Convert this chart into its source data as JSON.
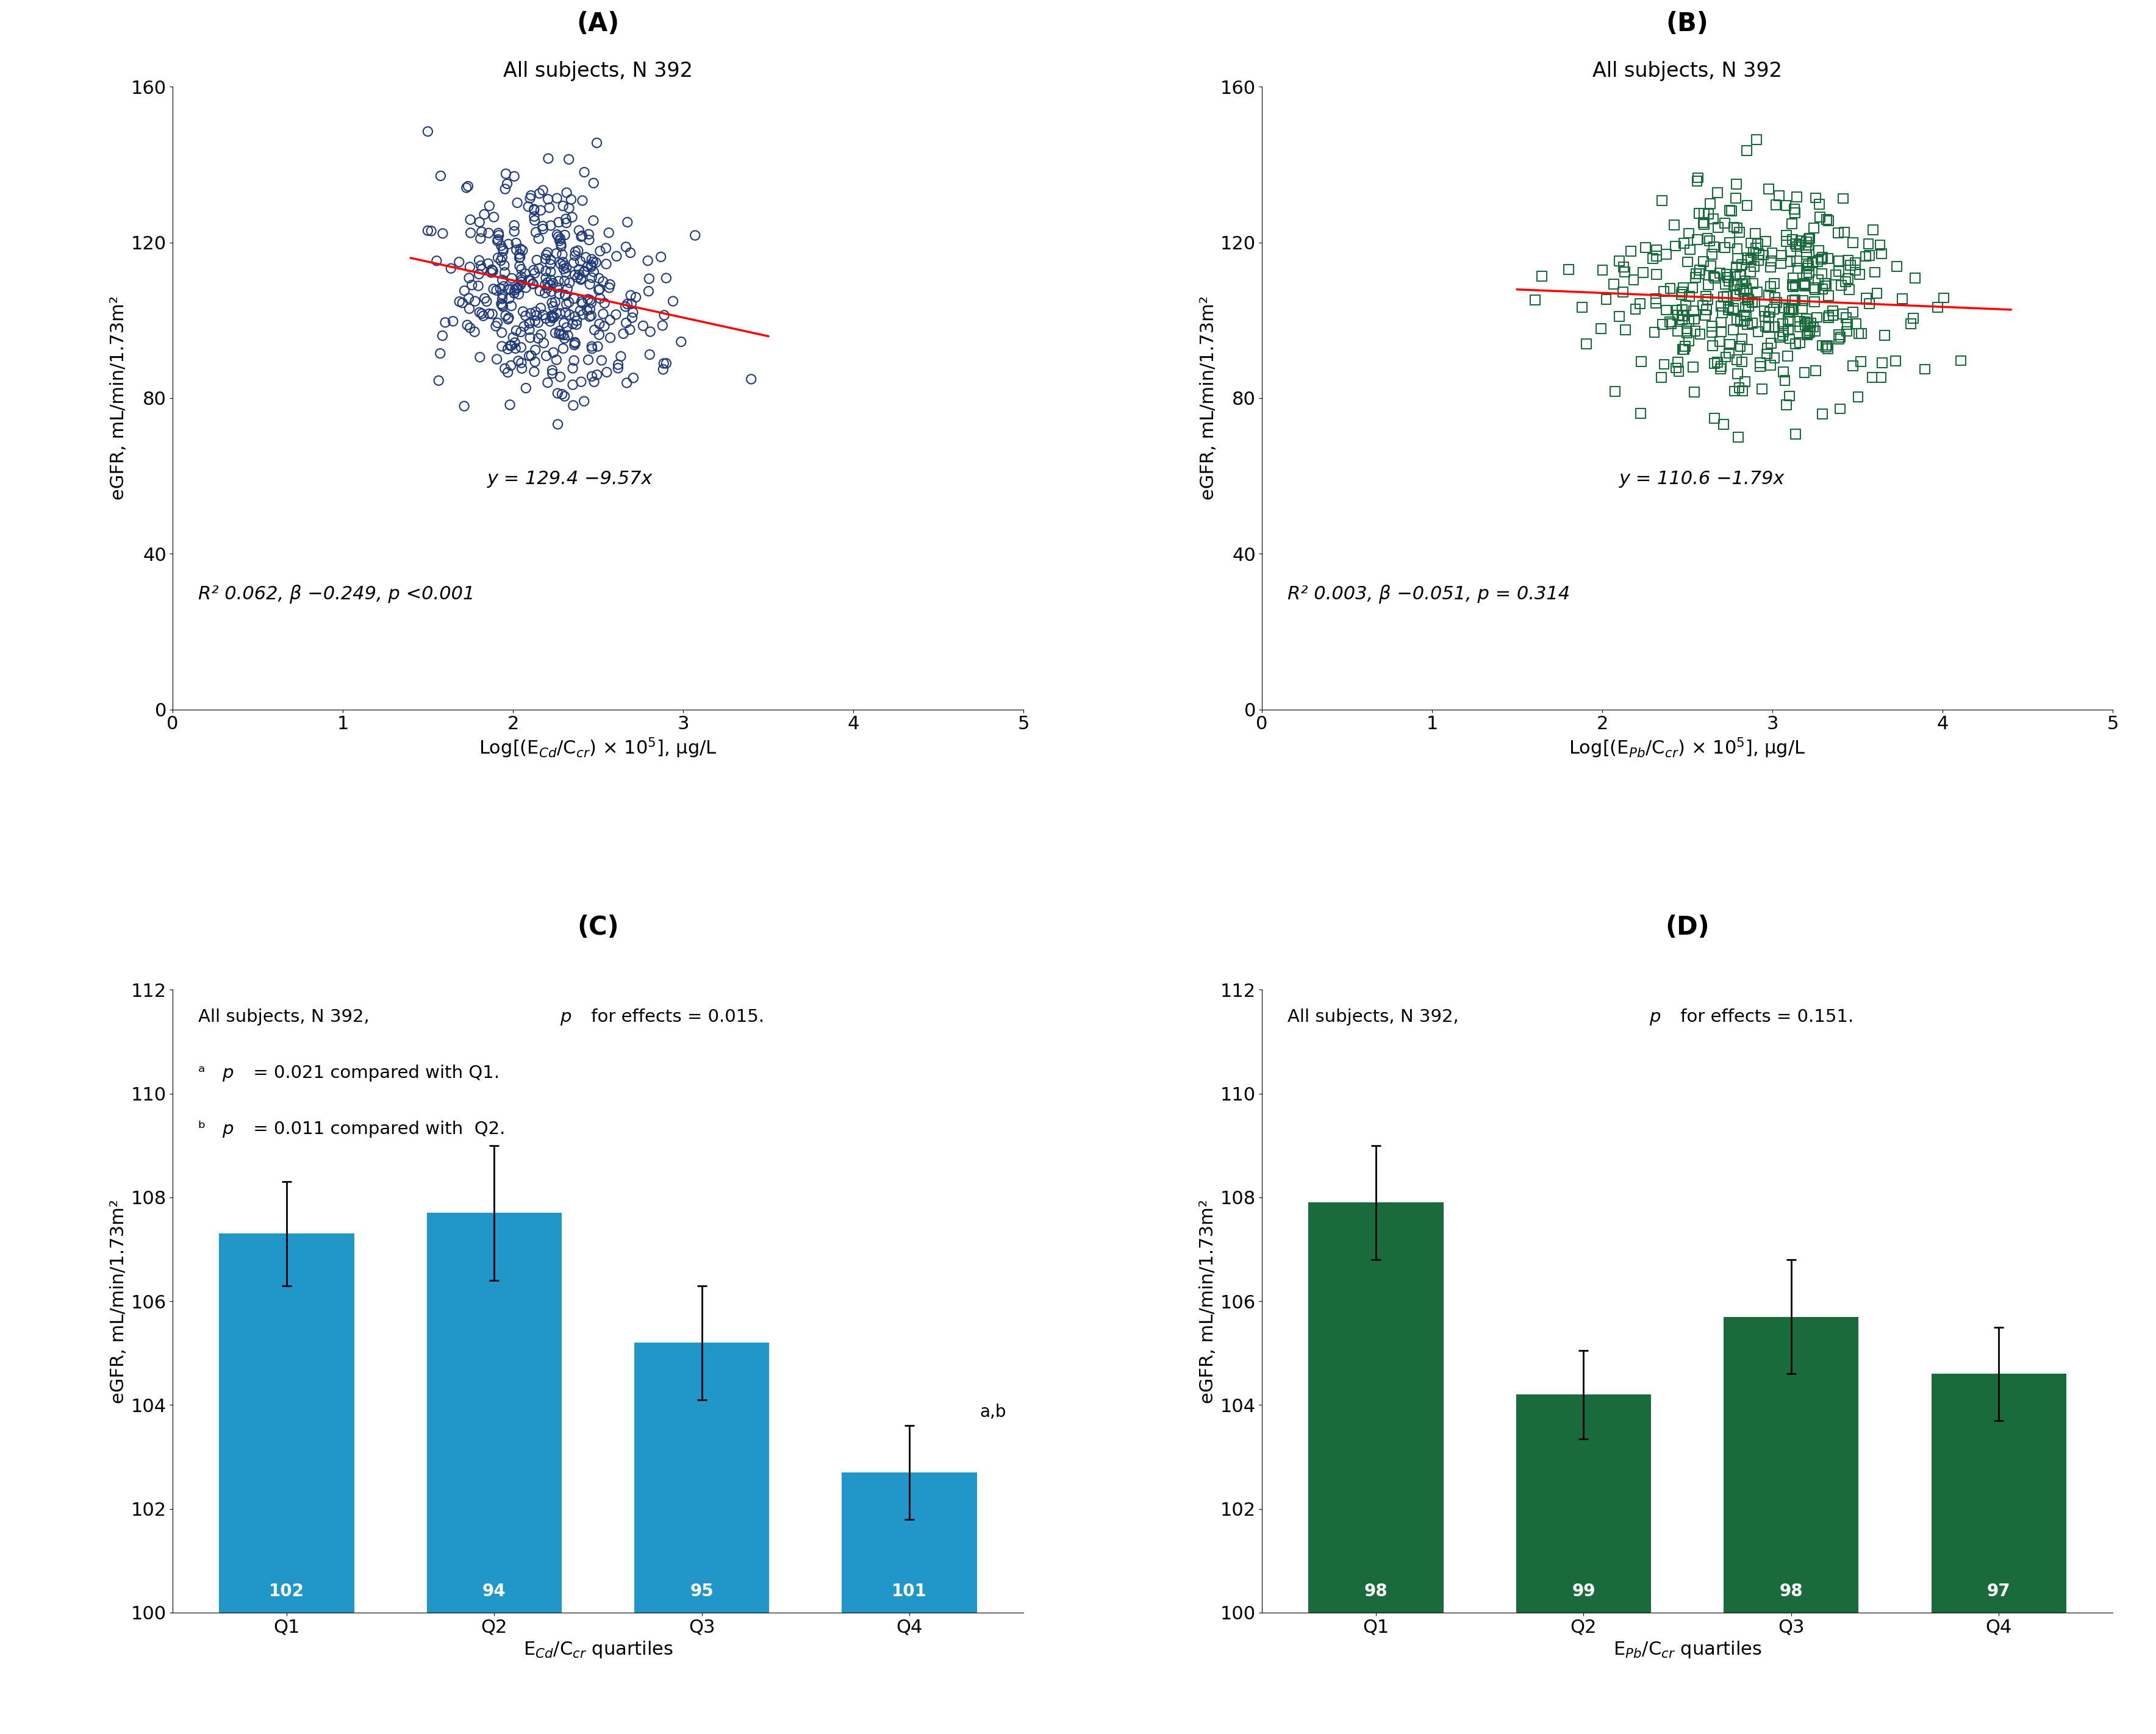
{
  "panel_A": {
    "title": "All subjects, N 392",
    "xlabel": "Log[(E$_{Cd}$/C$_{cr}$) × 10$^5$], μg/L",
    "ylabel": "eGFR, mL/min/1.73m²",
    "scatter_color": "#1F3A7A",
    "marker": "o",
    "xlim": [
      0,
      5
    ],
    "ylim": [
      0,
      160
    ],
    "xticks": [
      0,
      1,
      2,
      3,
      4,
      5
    ],
    "yticks": [
      0,
      40,
      80,
      120,
      160
    ],
    "intercept": 129.4,
    "slope": -9.57,
    "equation": "y = 129.4 −9.57x",
    "stats": "R² 0.062, β −0.249, p <0.001",
    "line_color": "#FF0000",
    "x_mean": 2.2,
    "x_std": 0.32,
    "x_min": 1.5,
    "x_max": 3.4,
    "y_noise": 13,
    "n_points": 392,
    "seed": 42,
    "line_xmin": 1.4,
    "line_xmax": 3.5
  },
  "panel_B": {
    "title": "All subjects, N 392",
    "xlabel": "Log[(E$_{Pb}$/C$_{cr}$) × 10$^5$], μg/L",
    "ylabel": "eGFR, mL/min/1.73m²",
    "scatter_color": "#1A6B3C",
    "marker": "s",
    "xlim": [
      0,
      5
    ],
    "ylim": [
      0,
      160
    ],
    "xticks": [
      0,
      1,
      2,
      3,
      4,
      5
    ],
    "yticks": [
      0,
      40,
      80,
      120,
      160
    ],
    "intercept": 110.6,
    "slope": -1.79,
    "equation": "y = 110.6 −1.79x",
    "stats": "R² 0.003, β −0.051, p = 0.314",
    "line_color": "#FF0000",
    "x_mean": 2.9,
    "x_std": 0.42,
    "x_min": 1.6,
    "x_max": 4.3,
    "y_noise": 13,
    "n_points": 392,
    "seed": 99,
    "line_xmin": 1.5,
    "line_xmax": 4.4
  },
  "panel_C": {
    "xlabel": "E$_{Cd}$/C$_{cr}$ quartiles",
    "ylabel": "eGFR, mL/min/1.73m²",
    "categories": [
      "Q1",
      "Q2",
      "Q3",
      "Q4"
    ],
    "values": [
      107.3,
      107.7,
      105.2,
      102.7
    ],
    "errors": [
      1.0,
      1.3,
      1.1,
      0.9
    ],
    "ns": [
      102,
      94,
      95,
      101
    ],
    "bar_color": "#2196C8",
    "ylim": [
      100,
      112
    ],
    "yticks": [
      100,
      102,
      104,
      106,
      108,
      110,
      112
    ],
    "annotation": "a,b",
    "annot_bar": 3,
    "line1": "All subjects, N 392, ",
    "line1_p": "p",
    "line1_rest": " for effects = 0.015.",
    "line2_super": "a",
    "line2_p": "p",
    "line2_rest": " = 0.021 compared with Q1.",
    "line3_super": "b",
    "line3_p": "p",
    "line3_rest": " = 0.011 compared with  Q2."
  },
  "panel_D": {
    "xlabel": "E$_{Pb}$/C$_{cr}$ quartiles",
    "ylabel": "eGFR, mL/min/1.73m²",
    "categories": [
      "Q1",
      "Q2",
      "Q3",
      "Q4"
    ],
    "values": [
      107.9,
      104.2,
      105.7,
      104.6
    ],
    "errors": [
      1.1,
      0.85,
      1.1,
      0.9
    ],
    "ns": [
      98,
      99,
      98,
      97
    ],
    "bar_color": "#1A6B3C",
    "ylim": [
      100,
      112
    ],
    "yticks": [
      100,
      102,
      104,
      106,
      108,
      110,
      112
    ],
    "line1": "All subjects, N 392, ",
    "line1_p": "p",
    "line1_rest": " for effects = 0.151."
  },
  "panel_label_fontsize": 30,
  "title_fontsize": 24,
  "axis_label_fontsize": 22,
  "tick_fontsize": 22,
  "equation_fontsize": 22,
  "stats_fontsize": 22,
  "bar_label_fontsize": 20,
  "annot_fontsize": 20,
  "inner_text_fontsize": 21
}
